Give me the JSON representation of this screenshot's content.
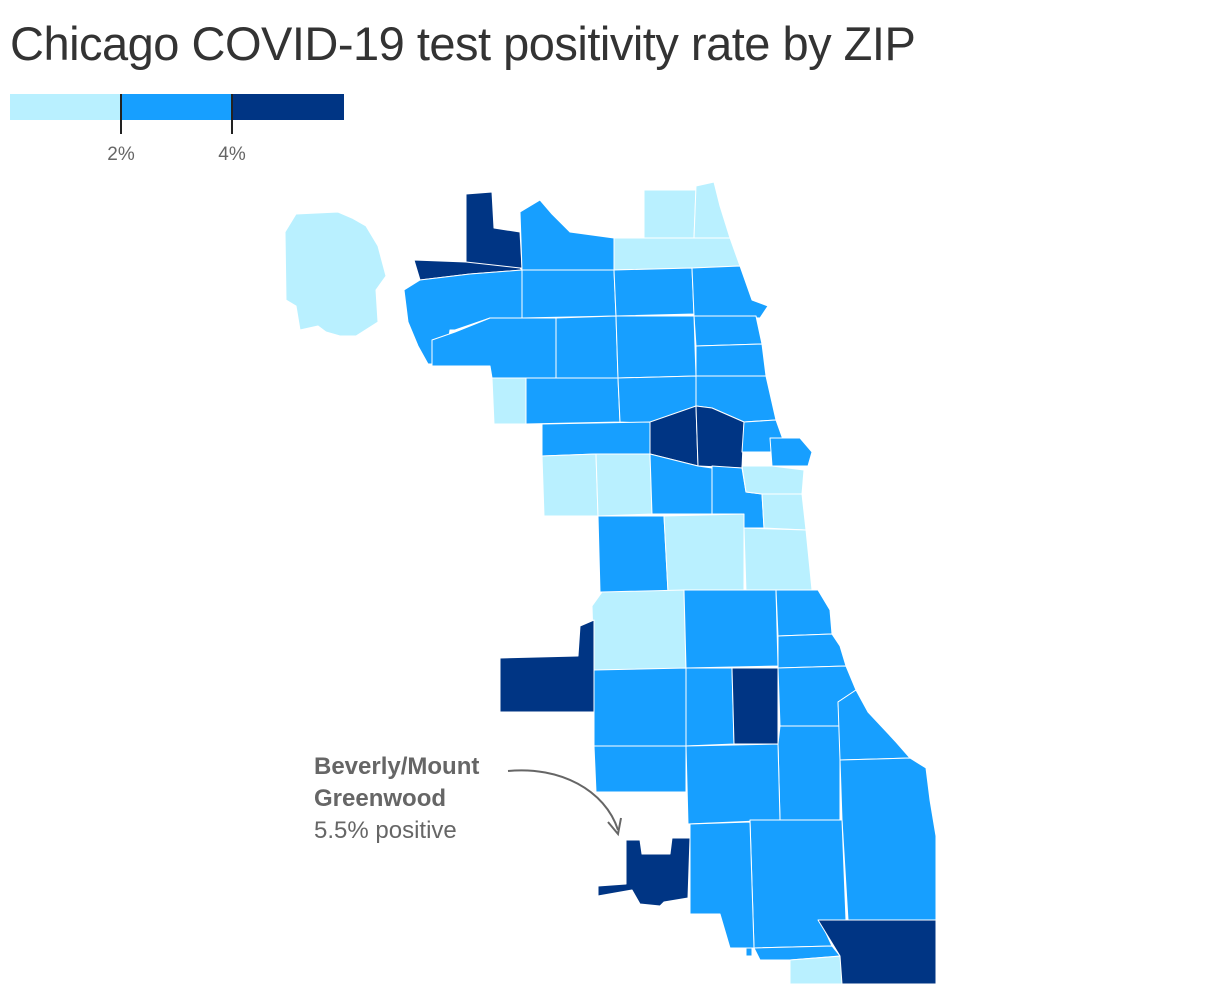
{
  "title": "Chicago COVID-19 test positivity rate by ZIP",
  "colors": {
    "low": "#b9f0ff",
    "mid": "#179fff",
    "high": "#003584",
    "border": "#ffffff",
    "annotation": "#666666"
  },
  "legend": {
    "bins": [
      "low",
      "mid",
      "high"
    ],
    "ticks": [
      {
        "label": "2%"
      },
      {
        "label": "4%"
      }
    ]
  },
  "annotation": {
    "line1": "Beverly/Mount",
    "line2": "Greenwood",
    "line3": "5.5% positive"
  },
  "map": {
    "regions": [
      {
        "name": "zip-far-northwest",
        "bin": "low"
      },
      {
        "name": "zip-northwest-dark",
        "bin": "high"
      },
      {
        "name": "zip-northwest-strip",
        "bin": "high"
      },
      {
        "name": "zip-north-1",
        "bin": "mid"
      },
      {
        "name": "zip-rogers-park",
        "bin": "low"
      },
      {
        "name": "zip-edgewater-north",
        "bin": "low"
      },
      {
        "name": "zip-edgewater",
        "bin": "low"
      },
      {
        "name": "zip-northwest-corridor",
        "bin": "mid"
      },
      {
        "name": "zip-north-2",
        "bin": "mid"
      },
      {
        "name": "zip-north-3",
        "bin": "mid"
      },
      {
        "name": "zip-north-4",
        "bin": "mid"
      },
      {
        "name": "zip-lakeview",
        "bin": "mid"
      },
      {
        "name": "zip-west-1",
        "bin": "mid"
      },
      {
        "name": "zip-west-2",
        "bin": "mid"
      },
      {
        "name": "zip-west-3",
        "bin": "mid"
      },
      {
        "name": "zip-lincoln-park",
        "bin": "mid"
      },
      {
        "name": "zip-west-small",
        "bin": "low"
      },
      {
        "name": "zip-central-west-1",
        "bin": "mid"
      },
      {
        "name": "zip-central-west-2",
        "bin": "mid"
      },
      {
        "name": "zip-central-west-3",
        "bin": "mid"
      },
      {
        "name": "zip-near-north",
        "bin": "mid"
      },
      {
        "name": "zip-humboldt",
        "bin": "mid"
      },
      {
        "name": "zip-garfield-park",
        "bin": "high"
      },
      {
        "name": "zip-near-west",
        "bin": "high"
      },
      {
        "name": "zip-loop-north",
        "bin": "mid"
      },
      {
        "name": "zip-loop-east",
        "bin": "mid"
      },
      {
        "name": "zip-austin",
        "bin": "low"
      },
      {
        "name": "zip-lawndale-west",
        "bin": "low"
      },
      {
        "name": "zip-lawndale",
        "bin": "mid"
      },
      {
        "name": "zip-pilsen",
        "bin": "mid"
      },
      {
        "name": "zip-loop",
        "bin": "low"
      },
      {
        "name": "zip-south-loop",
        "bin": "low"
      },
      {
        "name": "zip-archer",
        "bin": "mid"
      },
      {
        "name": "zip-bridgeport",
        "bin": "low"
      },
      {
        "name": "zip-bronzeville",
        "bin": "low"
      },
      {
        "name": "zip-garfield-ridge",
        "bin": "low"
      },
      {
        "name": "zip-clearing",
        "bin": "high"
      },
      {
        "name": "zip-gage-park",
        "bin": "mid"
      },
      {
        "name": "zip-englewood",
        "bin": "mid"
      },
      {
        "name": "zip-kenwood",
        "bin": "mid"
      },
      {
        "name": "zip-hyde-park",
        "bin": "mid"
      },
      {
        "name": "zip-chicago-lawn",
        "bin": "mid"
      },
      {
        "name": "zip-west-englewood",
        "bin": "mid"
      },
      {
        "name": "zip-greater-grand",
        "bin": "high"
      },
      {
        "name": "zip-woodlawn",
        "bin": "mid"
      },
      {
        "name": "zip-south-shore",
        "bin": "mid"
      },
      {
        "name": "zip-ashburn",
        "bin": "mid"
      },
      {
        "name": "zip-auburn",
        "bin": "mid"
      },
      {
        "name": "zip-chatham",
        "bin": "mid"
      },
      {
        "name": "zip-south-chicago",
        "bin": "mid"
      },
      {
        "name": "zip-beverly",
        "bin": "high"
      },
      {
        "name": "zip-morgan-park",
        "bin": "mid"
      },
      {
        "name": "zip-roseland",
        "bin": "mid"
      },
      {
        "name": "zip-pullman",
        "bin": "mid"
      },
      {
        "name": "zip-riverdale",
        "bin": "low"
      },
      {
        "name": "zip-hegewisch",
        "bin": "high"
      }
    ]
  }
}
